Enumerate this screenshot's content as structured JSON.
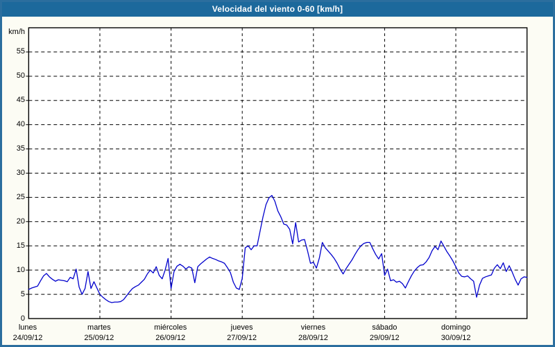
{
  "window": {
    "title": "Velocidad del viento 0-60 [km/h]"
  },
  "colors": {
    "titlebar_bg": "#1c699c",
    "frame_border": "#2b6e9e",
    "page_bg": "#fcfcf4",
    "plot_bg": "#ffffff",
    "line": "#0000cc",
    "grid": "#000000",
    "axis": "#000000",
    "title_text": "#ffffff"
  },
  "chart_data": {
    "type": "line",
    "title": "Velocidad del viento 0-60 [km/h]",
    "xlabel": "",
    "ylabel": "km/h",
    "ylim": [
      0,
      60
    ],
    "ytick_interval": 5,
    "ytick_labels": [
      "0",
      "5",
      "10",
      "15",
      "20",
      "25",
      "30",
      "35",
      "40",
      "45",
      "50",
      "55"
    ],
    "grid": "dashed",
    "legend": "none",
    "x_days": [
      {
        "name": "lunes",
        "date": "24/09/12"
      },
      {
        "name": "martes",
        "date": "25/09/12"
      },
      {
        "name": "miércoles",
        "date": "26/09/12"
      },
      {
        "name": "jueves",
        "date": "27/09/12"
      },
      {
        "name": "viernes",
        "date": "28/09/12"
      },
      {
        "name": "sábado",
        "date": "29/09/12"
      },
      {
        "name": "domingo",
        "date": "30/09/12"
      }
    ],
    "series": [
      {
        "name": "velocidad del viento",
        "unit": "km/h",
        "sampling": "hourly",
        "values": [
          6.0,
          6.3,
          6.5,
          6.7,
          7.8,
          8.8,
          9.3,
          8.6,
          8.1,
          7.7,
          8.0,
          7.9,
          7.8,
          7.6,
          8.5,
          8.2,
          10.2,
          6.5,
          5.0,
          6.2,
          9.7,
          6.2,
          7.6,
          6.3,
          5.0,
          4.4,
          3.9,
          3.5,
          3.3,
          3.4,
          3.4,
          3.5,
          3.9,
          4.7,
          5.5,
          6.2,
          6.6,
          6.9,
          7.5,
          8.1,
          9.2,
          10.0,
          9.4,
          10.7,
          8.9,
          8.2,
          10.0,
          12.4,
          6.2,
          9.7,
          10.8,
          11.2,
          10.8,
          10.2,
          10.7,
          10.4,
          7.4,
          10.7,
          11.3,
          11.8,
          12.3,
          12.7,
          12.4,
          12.2,
          11.9,
          11.7,
          11.4,
          10.5,
          9.5,
          7.5,
          6.3,
          6.0,
          8.3,
          14.6,
          15.0,
          14.2,
          15.0,
          15.0,
          18.0,
          21.0,
          23.5,
          24.9,
          25.4,
          24.2,
          22.2,
          21.0,
          19.5,
          19.3,
          18.4,
          15.4,
          19.8,
          15.8,
          16.2,
          16.3,
          14.0,
          11.4,
          11.6,
          10.4,
          12.5,
          15.7,
          14.6,
          13.9,
          13.2,
          12.4,
          11.4,
          10.2,
          9.2,
          10.3,
          11.2,
          12.1,
          13.2,
          14.2,
          15.0,
          15.5,
          15.7,
          15.7,
          14.4,
          13.2,
          12.3,
          13.4,
          8.9,
          10.2,
          7.8,
          8.0,
          7.5,
          7.7,
          7.2,
          6.3,
          7.6,
          8.8,
          9.8,
          10.5,
          11.0,
          11.1,
          11.7,
          12.6,
          14.0,
          14.9,
          14.2,
          16.0,
          14.9,
          13.8,
          12.9,
          11.9,
          10.7,
          9.4,
          8.7,
          8.6,
          8.8,
          8.2,
          7.7,
          4.4,
          6.9,
          8.3,
          8.6,
          8.8,
          9.0,
          10.4,
          11.1,
          10.3,
          11.5,
          9.7,
          10.9,
          9.6,
          8.1,
          6.9,
          8.2,
          8.6,
          8.5
        ]
      }
    ]
  }
}
